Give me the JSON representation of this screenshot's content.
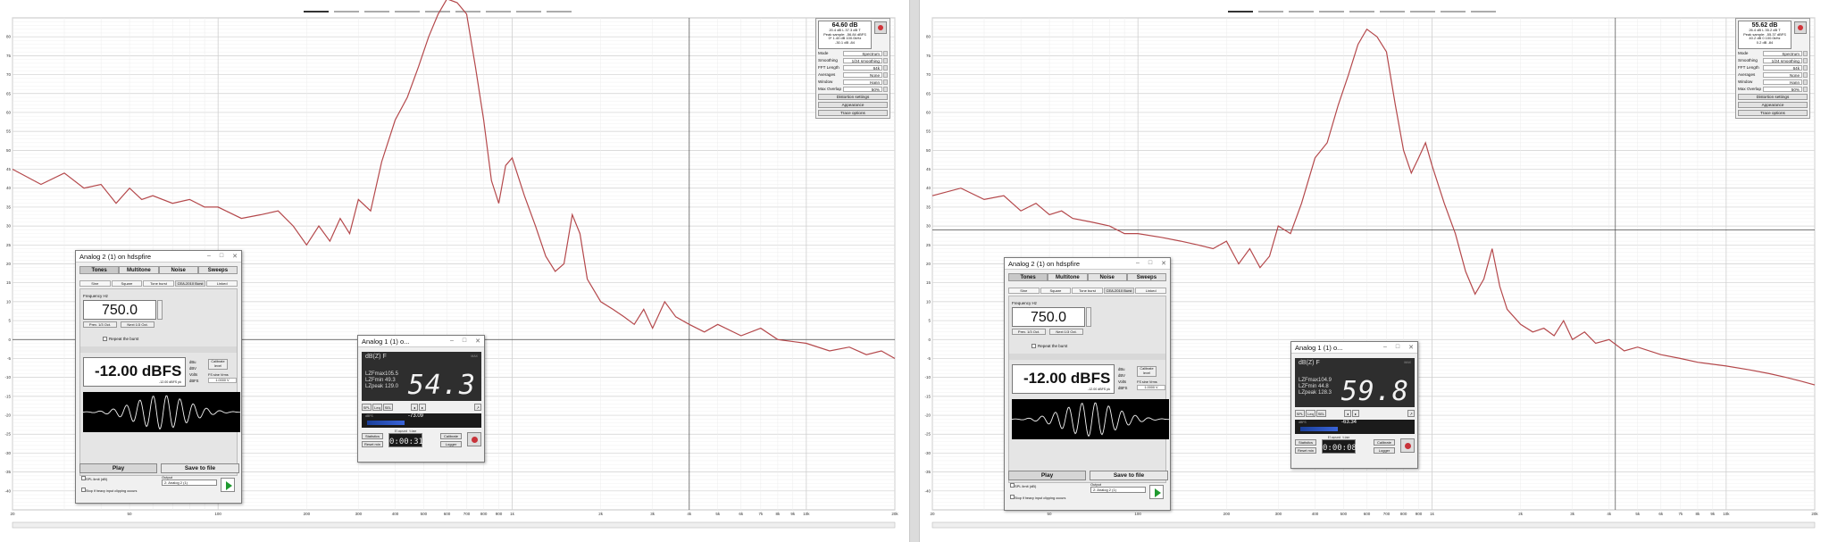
{
  "colors": {
    "trace": "#b4484b",
    "grid_major": "#cfcfcf",
    "grid_minor": "#ececec",
    "cursor_line": "#4a4a4a",
    "button_stop": "#d0343a",
    "play_green": "#1f9a2f",
    "meter_bg": "#2e2e2e"
  },
  "panels": [
    {
      "side": "left",
      "tabs_count": 9,
      "y_ticks": [
        "80",
        "75",
        "70",
        "65",
        "60",
        "55",
        "50",
        "45",
        "40",
        "35",
        "30",
        "25",
        "20",
        "15",
        "10",
        "5",
        "0",
        "-5",
        "-10",
        "-15",
        "-20",
        "-25",
        "-30",
        "-35",
        "-40"
      ],
      "x_ticks": [
        "20",
        "50",
        "100",
        "200",
        "300",
        "400",
        "500",
        "600",
        "700",
        "800",
        "900",
        "1k",
        "2k",
        "3k",
        "4k",
        "5k",
        "6k",
        "7k",
        "8k",
        "9k",
        "10k",
        "20k"
      ],
      "settings": {
        "readout_main": "64.60 dB",
        "readout_lines": [
          "20.4 dB L 37.3 dB T",
          "Peak sample: -56.84 dBFS",
          "0* 1.40 dB 100.0kHz",
          "-30.1 dB -84"
        ],
        "rows": [
          {
            "label": "Mode",
            "value": "Spectrum"
          },
          {
            "label": "Smoothing",
            "value": "1/24 smoothing"
          },
          {
            "label": "FFT Length",
            "value": "64k"
          },
          {
            "label": "Averages",
            "value": "None"
          },
          {
            "label": "Window",
            "value": "Hann"
          },
          {
            "label": "Max Overlap",
            "value": "50%"
          }
        ],
        "buttons": [
          "Distortion settings",
          "Appearance",
          "Trace options"
        ]
      },
      "generator": {
        "title": "Analog 2 (1) on hdspfire",
        "tabs": [
          "Tones",
          "Multitone",
          "Noise",
          "Sweeps"
        ],
        "subtabs": [
          "Sine",
          "Square",
          "Tone burst",
          "CEA-2010 Burst",
          "Linked"
        ],
        "freq_label": "Frequency Hz",
        "freq_value": "750.0",
        "prev_oct": "Prev. 1/3 Oct.",
        "next_oct": "Next 1/3 Oct.",
        "repeat_label": "Repeat the burst",
        "level_value": "-12.00 dBFS",
        "level_sub": "-12.00 dBFS pk",
        "units": [
          "dBu",
          "dBV",
          "Volts",
          "dBFS"
        ],
        "calibrate_label": "Calibrate level",
        "amp_info": "FS sine Vrms",
        "amp_value": "1.0000 V",
        "play_label": "Play",
        "save_label": "Save to file",
        "spl_label": "SPL limit (dB)",
        "output_label": "Output",
        "output_value": "2: Analog 2 (1)",
        "stop_label": "Stop if heavy input clipping occurs"
      },
      "meter": {
        "title": "Analog 1 (1) o...",
        "weighting": "dB(Z) F",
        "lzfmax_label": "LZFmax",
        "lzfmax": "105.5",
        "lzfmin_label": "LZFmin",
        "lzfmin": "49.3",
        "lzpeak_label": "LZpeak",
        "lzpeak": "129.0",
        "reading": "54.3",
        "bar_value": "-73.09",
        "timer": "0:00:31",
        "timer_caption": "Elapsed time",
        "weight_buttons": [
          "SPL",
          "Leq",
          "SEL"
        ],
        "stats_button": "Statistics",
        "reset_button": "Reset min",
        "calibrate_button": "Calibrate",
        "logger_button": "Logger",
        "scale_caption": "dBFS",
        "peak_caption": "MAX"
      }
    },
    {
      "side": "right",
      "tabs_count": 9,
      "y_ticks": [
        "80",
        "75",
        "70",
        "65",
        "60",
        "55",
        "50",
        "45",
        "40",
        "35",
        "30",
        "25",
        "20",
        "15",
        "10",
        "5",
        "0",
        "-5",
        "-10",
        "-15",
        "-20",
        "-25",
        "-30",
        "-35",
        "-40"
      ],
      "x_ticks": [
        "20",
        "50",
        "100",
        "200",
        "300",
        "400",
        "500",
        "600",
        "700",
        "800",
        "900",
        "1k",
        "2k",
        "3k",
        "4k",
        "5k",
        "6k",
        "7k",
        "8k",
        "9k",
        "10k",
        "20k"
      ],
      "settings": {
        "readout_main": "55.62 dB",
        "readout_lines": [
          "26.4 dB L 35.2 dB T",
          "Peak sample: -55.37 dBFS",
          "40.2 dB 0 100.0kHz",
          "0.2 dB -84"
        ],
        "rows": [
          {
            "label": "Mode",
            "value": "Spectrum"
          },
          {
            "label": "Smoothing",
            "value": "1/24 smoothing"
          },
          {
            "label": "FFT Length",
            "value": "64k"
          },
          {
            "label": "Averages",
            "value": "None"
          },
          {
            "label": "Window",
            "value": "Hann"
          },
          {
            "label": "Max Overlap",
            "value": "50%"
          }
        ],
        "buttons": [
          "Distortion settings",
          "Appearance",
          "Trace options"
        ]
      },
      "generator": {
        "title": "Analog 2 (1) on hdspfire",
        "tabs": [
          "Tones",
          "Multitone",
          "Noise",
          "Sweeps"
        ],
        "subtabs": [
          "Sine",
          "Square",
          "Tone burst",
          "CEA-2010 Burst",
          "Linked"
        ],
        "freq_label": "Frequency Hz",
        "freq_value": "750.0",
        "prev_oct": "Prev. 1/3 Oct.",
        "next_oct": "Next 1/3 Oct.",
        "repeat_label": "Repeat the burst",
        "level_value": "-12.00 dBFS",
        "level_sub": "-12.00 dBFS pk",
        "units": [
          "dBu",
          "dBV",
          "Volts",
          "dBFS"
        ],
        "calibrate_label": "Calibrate level",
        "amp_info": "FS sine Vrms",
        "amp_value": "1.0000 V",
        "play_label": "Play",
        "save_label": "Save to file",
        "spl_label": "SPL limit (dB)",
        "output_label": "Output",
        "output_value": "2: Analog 2 (1)",
        "stop_label": "Stop if heavy input clipping occurs"
      },
      "meter": {
        "title": "Analog 1 (1) o...",
        "weighting": "dB(Z) F",
        "lzfmax_label": "LZFmax",
        "lzfmax": "104.9",
        "lzfmin_label": "LZFmin",
        "lzfmin": "44.8",
        "lzpeak_label": "LZpeak",
        "lzpeak": "128.3",
        "reading": "59.8",
        "bar_value": "-63.34",
        "timer": "0:00:08",
        "timer_caption": "Elapsed time",
        "weight_buttons": [
          "SPL",
          "Leq",
          "SEL"
        ],
        "stats_button": "Statistics",
        "reset_button": "Reset min",
        "calibrate_button": "Calibrate",
        "logger_button": "Logger",
        "scale_caption": "dBFS",
        "peak_caption": "MAX"
      }
    }
  ],
  "chart_data": [
    {
      "type": "line",
      "xscale": "log",
      "xlim": [
        20,
        20000
      ],
      "ylim": [
        -45,
        85
      ],
      "grid": true,
      "series": [
        {
          "x": [
            20,
            25,
            30,
            35,
            40,
            45,
            50,
            55,
            60,
            70,
            80,
            90,
            100,
            120,
            140,
            160,
            180,
            200,
            220,
            240,
            260,
            280,
            300,
            330,
            360,
            400,
            440,
            480,
            520,
            560,
            600,
            650,
            700,
            750,
            800,
            850,
            900,
            950,
            1000,
            1100,
            1200,
            1300,
            1400,
            1500,
            1600,
            1700,
            1800,
            2000,
            2200,
            2400,
            2600,
            2800,
            3000,
            3300,
            3600,
            4000,
            4500,
            5000,
            6000,
            7000,
            8000,
            10000,
            12000,
            14000,
            16000,
            18000,
            20000
          ],
          "y": [
            45,
            41,
            44,
            40,
            41,
            36,
            40,
            37,
            38,
            36,
            37,
            35,
            35,
            32,
            33,
            34,
            30,
            25,
            30,
            26,
            32,
            28,
            37,
            34,
            47,
            58,
            64,
            72,
            80,
            86,
            90,
            89,
            86,
            72,
            58,
            42,
            36,
            46,
            48,
            38,
            30,
            22,
            18,
            20,
            33,
            28,
            16,
            10,
            8,
            6,
            4,
            8,
            3,
            10,
            6,
            4,
            2,
            4,
            1,
            3,
            0,
            -1,
            -3,
            -2,
            -4,
            -3,
            -5
          ]
        }
      ]
    },
    {
      "type": "line",
      "xscale": "log",
      "xlim": [
        20,
        20000
      ],
      "ylim": [
        -45,
        85
      ],
      "grid": true,
      "series": [
        {
          "x": [
            20,
            25,
            30,
            35,
            40,
            45,
            50,
            55,
            60,
            70,
            80,
            90,
            100,
            120,
            140,
            160,
            180,
            200,
            220,
            240,
            260,
            280,
            300,
            330,
            360,
            400,
            440,
            480,
            520,
            560,
            600,
            650,
            700,
            750,
            800,
            850,
            900,
            950,
            1000,
            1100,
            1200,
            1300,
            1400,
            1500,
            1600,
            1700,
            1800,
            2000,
            2200,
            2400,
            2600,
            2800,
            3000,
            3300,
            3600,
            4000,
            4500,
            5000,
            6000,
            7000,
            8000,
            10000,
            12000,
            14000,
            16000,
            18000,
            20000
          ],
          "y": [
            38,
            40,
            37,
            38,
            34,
            36,
            33,
            34,
            32,
            31,
            30,
            28,
            28,
            27,
            26,
            25,
            24,
            26,
            20,
            24,
            19,
            22,
            30,
            28,
            36,
            48,
            52,
            62,
            70,
            78,
            82,
            80,
            76,
            62,
            50,
            44,
            48,
            52,
            46,
            36,
            28,
            18,
            12,
            16,
            24,
            14,
            8,
            4,
            2,
            3,
            1,
            5,
            0,
            2,
            -1,
            0,
            -3,
            -2,
            -4,
            -5,
            -6,
            -7,
            -8,
            -9,
            -10,
            -11,
            -12
          ]
        }
      ]
    }
  ]
}
